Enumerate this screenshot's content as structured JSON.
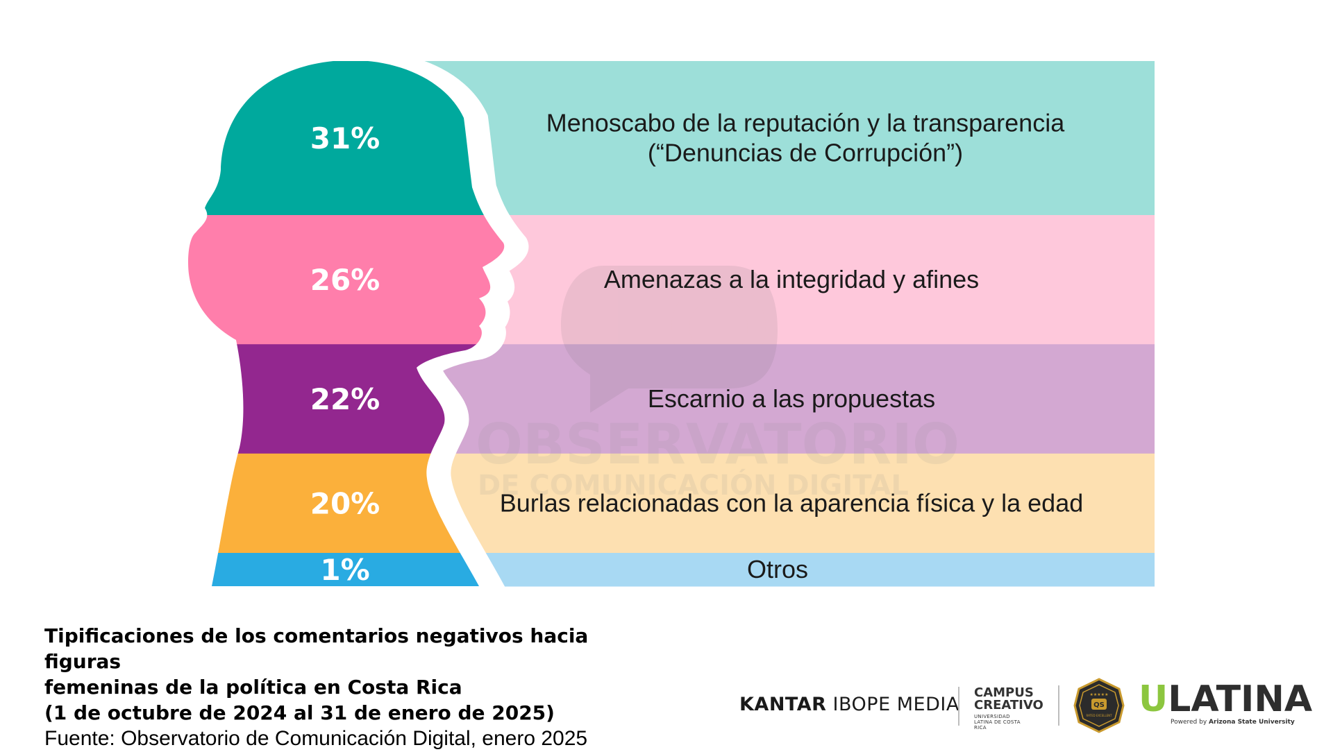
{
  "chart_data": {
    "type": "bar",
    "orientation": "horizontal-stacked-bands",
    "categories": [
      "Menoscabo de la reputación y la transparencia\n(“Denuncias de Corrupción”)",
      "Amenazas a la integridad y afines",
      "Escarnio a las propuestas",
      "Burlas relacionadas con la aparencia física y la edad",
      "Otros"
    ],
    "values": [
      31,
      26,
      22,
      20,
      1
    ],
    "value_labels": [
      "31%",
      "26%",
      "22%",
      "20%",
      "1%"
    ],
    "colors": [
      "#00a99d",
      "#ff7eab",
      "#93278f",
      "#fbb03b",
      "#29abe2"
    ],
    "light_colors": [
      "#9ddfd9",
      "#fec8db",
      "#d3a8d2",
      "#fde0b1",
      "#a8d9f3"
    ]
  },
  "watermark": {
    "line1": "OBSERVATORIO",
    "line2": "DE COMUNICACIÓN DIGITAL"
  },
  "caption": {
    "title_line1": "Tipificaciones de los comentarios negativos hacia figuras",
    "title_line2": "femeninas de la política en Costa Rica",
    "title_line3": "(1 de octubre de 2024 al 31 de enero de 2025)",
    "source": "Fuente: Observatorio de Comunicación Digital, enero 2025"
  },
  "logos": {
    "kantar_bold": "KANTAR",
    "kantar_rest": "IBOPE MEDIA",
    "campus_line1": "CAMPUS",
    "campus_line2": "CREATIVO",
    "campus_sub": "UNIVERSIDAD LATINA DE COSTA RICA",
    "badge_text": "QS",
    "badge_sub": "RATED EXCELLENT",
    "ulatina_first": "U",
    "ulatina_rest": "LATINA",
    "ulatina_powered": "Powered by",
    "ulatina_asu": "Arizona State University"
  }
}
